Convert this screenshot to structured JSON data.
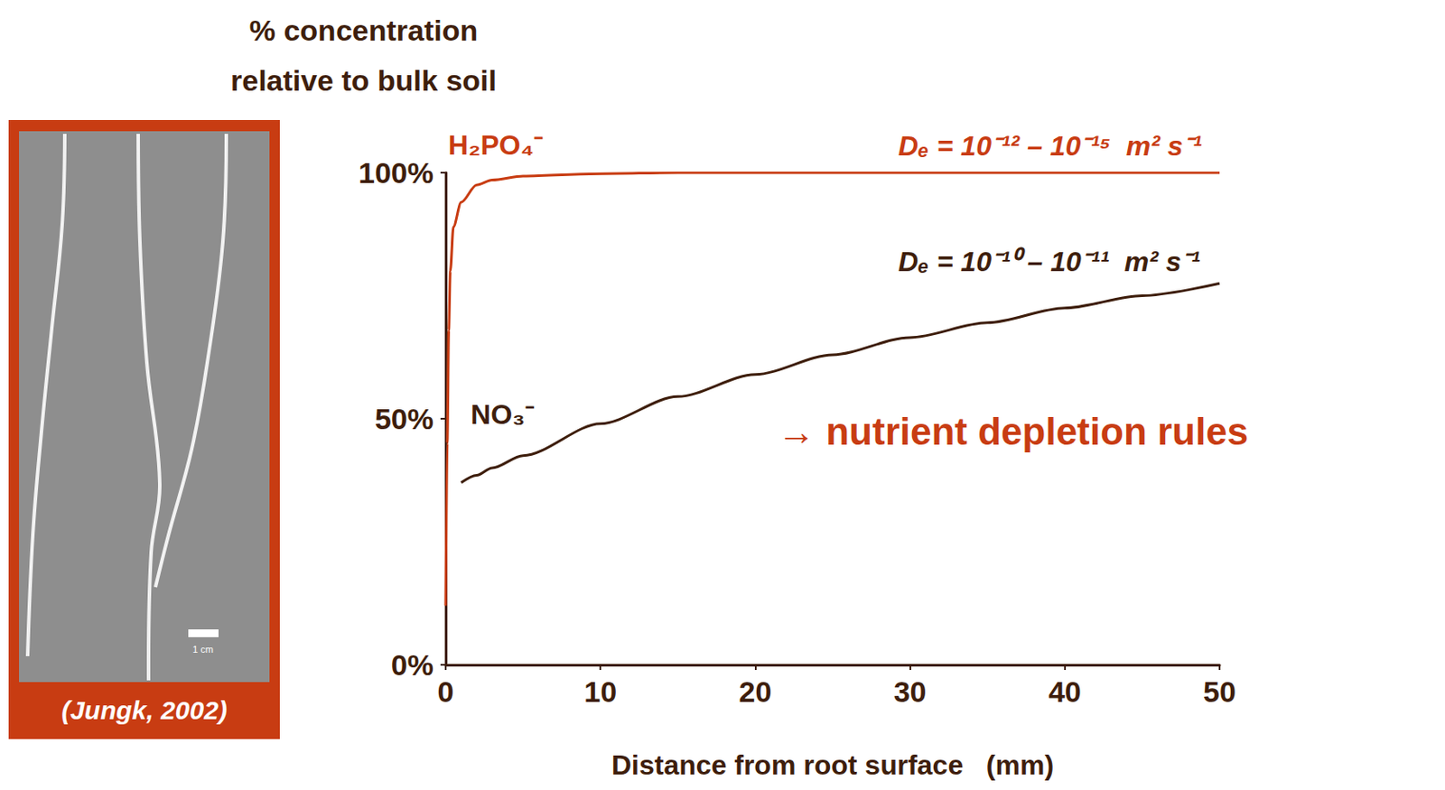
{
  "chart_data": {
    "type": "line",
    "title": "% concentration relative to bulk soil",
    "x_label": "Distance from root surface   (mm)",
    "x": [
      0,
      0.1,
      0.2,
      0.3,
      0.5,
      1,
      2,
      3,
      5,
      10,
      15,
      20,
      25,
      30,
      35,
      40,
      45,
      50
    ],
    "series": [
      {
        "name": "H₂PO₄⁻",
        "color": "#c83c12",
        "values": [
          12,
          45,
          68,
          80,
          89,
          94,
          97.5,
          98.5,
          99.3,
          99.8,
          100,
          100,
          100,
          100,
          100,
          100,
          100,
          100
        ]
      },
      {
        "name": "NO₃⁻",
        "color": "#3e1e0c",
        "values": [
          null,
          null,
          null,
          null,
          null,
          37,
          38.5,
          40,
          42.5,
          49,
          54.5,
          59,
          63,
          66.5,
          69.5,
          72.5,
          75,
          77.5
        ]
      }
    ],
    "xlim": [
      0,
      50
    ],
    "xticks": [
      0,
      10,
      20,
      30,
      40,
      50
    ],
    "ylim": [
      0,
      100
    ],
    "yticks": [
      {
        "value": 0,
        "label": "0%"
      },
      {
        "value": 50,
        "label": "50%"
      },
      {
        "value": 100,
        "label": "100%"
      }
    ],
    "grid": false,
    "annotations": [
      {
        "text": "Dₑ = 10⁻¹² – 10⁻¹⁵  m² s⁻¹",
        "color": "#c83c12"
      },
      {
        "text": "Dₑ = 10⁻¹⁰ – 10⁻¹¹  m² s⁻¹",
        "color": "#3e1e0c"
      },
      {
        "text": "→ nutrient depletion rules",
        "color": "#c83c12"
      }
    ]
  },
  "photo": {
    "scale_bar": "1 cm",
    "caption": "(Jungk, 2002)"
  }
}
